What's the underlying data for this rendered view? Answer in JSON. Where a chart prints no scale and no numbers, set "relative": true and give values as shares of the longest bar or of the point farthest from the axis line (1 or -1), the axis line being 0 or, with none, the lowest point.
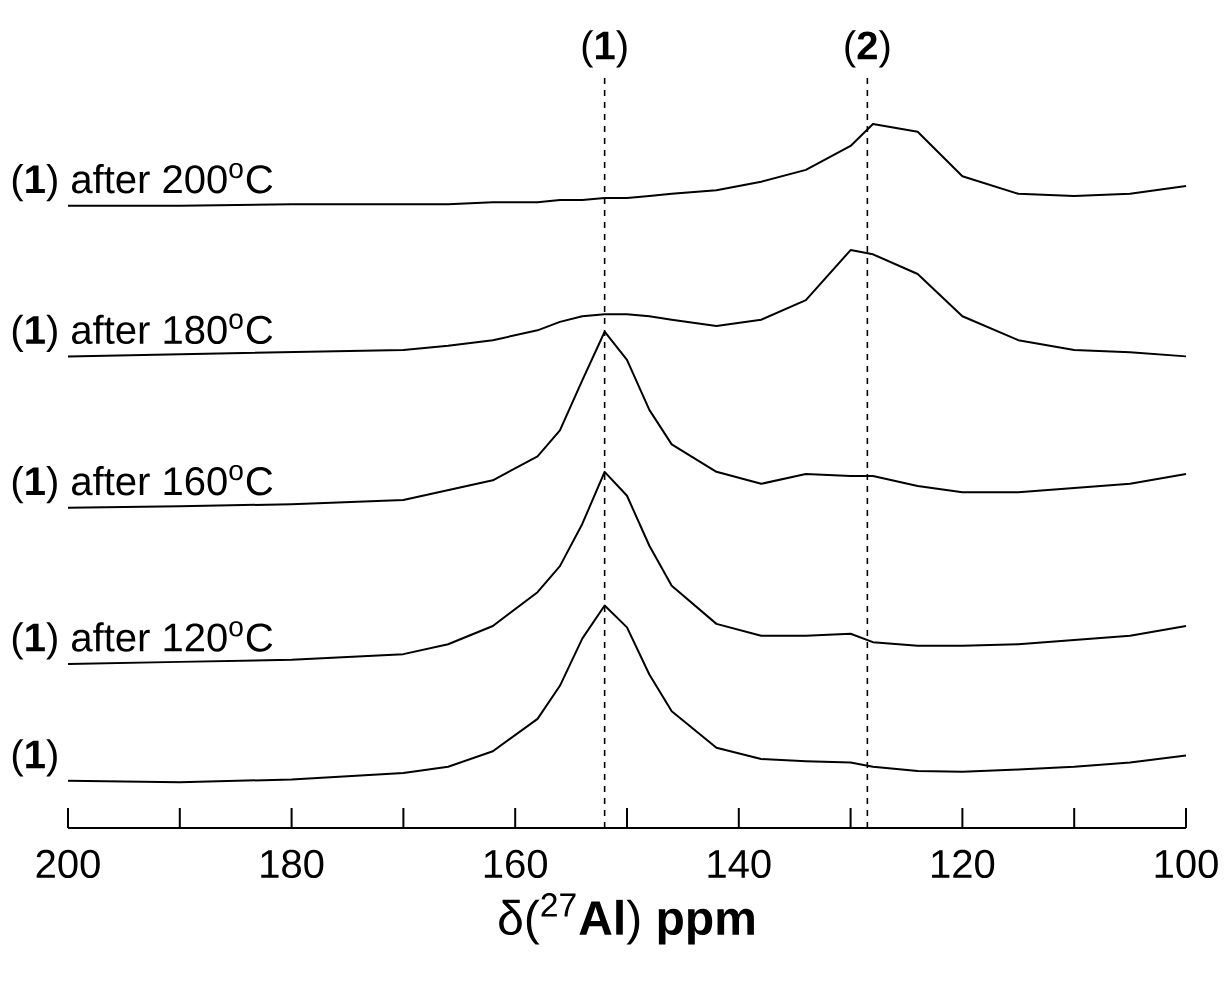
{
  "chart_data": {
    "type": "line",
    "relative": true,
    "xlabel": "δ($^{27}$**Al**) **ppm**",
    "xlim": [
      200,
      100
    ],
    "xticks": [
      200,
      {
        "value": 190,
        "label": null
      },
      180,
      {
        "value": 170,
        "label": null
      },
      160,
      {
        "value": 150,
        "label": null
      },
      140,
      {
        "value": 130,
        "label": null
      },
      120,
      {
        "value": 110,
        "label": null
      },
      100
    ],
    "x": [
      200,
      190,
      180,
      170,
      166,
      162,
      158,
      156,
      154,
      152,
      150,
      148,
      146,
      142,
      138,
      134,
      130,
      128,
      124,
      120,
      115,
      110,
      105,
      100
    ],
    "series": [
      {
        "name": "(**1**) after 200$^{o}$C",
        "color": "#000000",
        "values": [
          0.884,
          0.884,
          0.886,
          0.886,
          0.886,
          0.889,
          0.889,
          0.892,
          0.892,
          0.895,
          0.895,
          0.898,
          0.901,
          0.906,
          0.918,
          0.935,
          0.969,
          1.0,
          0.989,
          0.926,
          0.901,
          0.898,
          0.901,
          0.912
        ]
      },
      {
        "name": "(**1**) after 180$^{o}$C",
        "color": "#000000",
        "values": [
          0.67,
          0.673,
          0.676,
          0.679,
          0.685,
          0.693,
          0.707,
          0.719,
          0.727,
          0.73,
          0.73,
          0.727,
          0.722,
          0.713,
          0.722,
          0.75,
          0.821,
          0.815,
          0.787,
          0.727,
          0.693,
          0.679,
          0.676,
          0.67
        ]
      },
      {
        "name": "(**1**) after 160$^{o}$C",
        "color": "#000000",
        "values": [
          0.455,
          0.457,
          0.46,
          0.466,
          0.48,
          0.494,
          0.528,
          0.565,
          0.636,
          0.705,
          0.665,
          0.594,
          0.545,
          0.506,
          0.489,
          0.503,
          0.5,
          0.5,
          0.486,
          0.477,
          0.477,
          0.483,
          0.489,
          0.503
        ]
      },
      {
        "name": "(**1**) after 120$^{o}$C",
        "color": "#000000",
        "values": [
          0.233,
          0.236,
          0.239,
          0.247,
          0.261,
          0.287,
          0.335,
          0.372,
          0.432,
          0.506,
          0.472,
          0.401,
          0.344,
          0.29,
          0.273,
          0.273,
          0.276,
          0.264,
          0.259,
          0.259,
          0.261,
          0.267,
          0.273,
          0.287
        ]
      },
      {
        "name": "(**1**)",
        "color": "#000000",
        "values": [
          0.067,
          0.065,
          0.069,
          0.078,
          0.087,
          0.109,
          0.155,
          0.202,
          0.269,
          0.316,
          0.285,
          0.218,
          0.166,
          0.114,
          0.098,
          0.095,
          0.093,
          0.087,
          0.081,
          0.08,
          0.083,
          0.087,
          0.093,
          0.103
        ]
      }
    ],
    "ref_lines": [
      {
        "axis": "x",
        "value": 152,
        "color": "#000000",
        "line_style": "dashed"
      },
      {
        "axis": "x",
        "value": 128.5,
        "color": "#000000",
        "line_style": "dashed"
      }
    ],
    "annotations": [
      "(**1**)",
      "(**2**)"
    ],
    "legend": false
  }
}
